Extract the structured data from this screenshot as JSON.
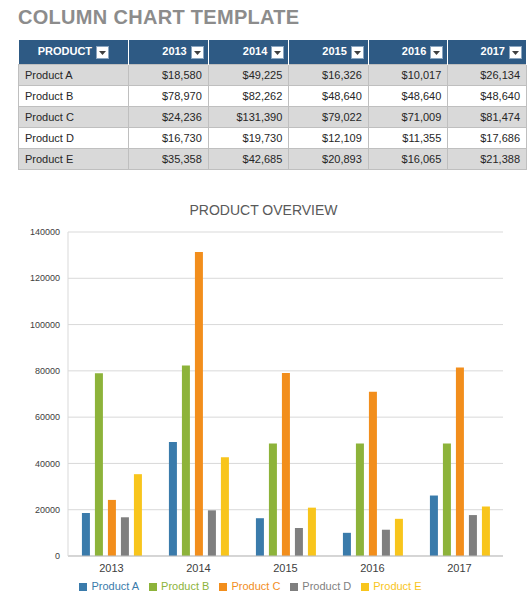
{
  "title": "COLUMN CHART TEMPLATE",
  "table": {
    "columns": [
      "PRODUCT",
      "2013",
      "2014",
      "2015",
      "2016",
      "2017"
    ],
    "rows": [
      [
        "Product A",
        "$18,580",
        "$49,225",
        "$16,326",
        "$10,017",
        "$26,134"
      ],
      [
        "Product B",
        "$78,970",
        "$82,262",
        "$48,640",
        "$48,640",
        "$48,640"
      ],
      [
        "Product C",
        "$24,236",
        "$131,390",
        "$79,022",
        "$71,009",
        "$81,474"
      ],
      [
        "Product D",
        "$16,730",
        "$19,730",
        "$12,109",
        "$11,355",
        "$17,686"
      ],
      [
        "Product E",
        "$35,358",
        "$42,685",
        "$20,893",
        "$16,065",
        "$21,388"
      ]
    ]
  },
  "chart_data": {
    "type": "bar",
    "title": "PRODUCT OVERVIEW",
    "categories": [
      "2013",
      "2014",
      "2015",
      "2016",
      "2017"
    ],
    "series": [
      {
        "name": "Product A",
        "color": "#3a7bab",
        "values": [
          18580,
          49225,
          16326,
          10017,
          26134
        ]
      },
      {
        "name": "Product B",
        "color": "#8db33a",
        "values": [
          78970,
          82262,
          48640,
          48640,
          48640
        ]
      },
      {
        "name": "Product C",
        "color": "#f28e1c",
        "values": [
          24236,
          131390,
          79022,
          71009,
          81474
        ]
      },
      {
        "name": "Product D",
        "color": "#7f7f7f",
        "values": [
          16730,
          19730,
          12109,
          11355,
          17686
        ]
      },
      {
        "name": "Product E",
        "color": "#f8c51c",
        "values": [
          35358,
          42685,
          20893,
          16065,
          21388
        ]
      }
    ],
    "ylim": [
      0,
      140000
    ],
    "yticks": [
      0,
      20000,
      40000,
      60000,
      80000,
      100000,
      120000,
      140000
    ],
    "grid": true,
    "legend": "bottom"
  }
}
